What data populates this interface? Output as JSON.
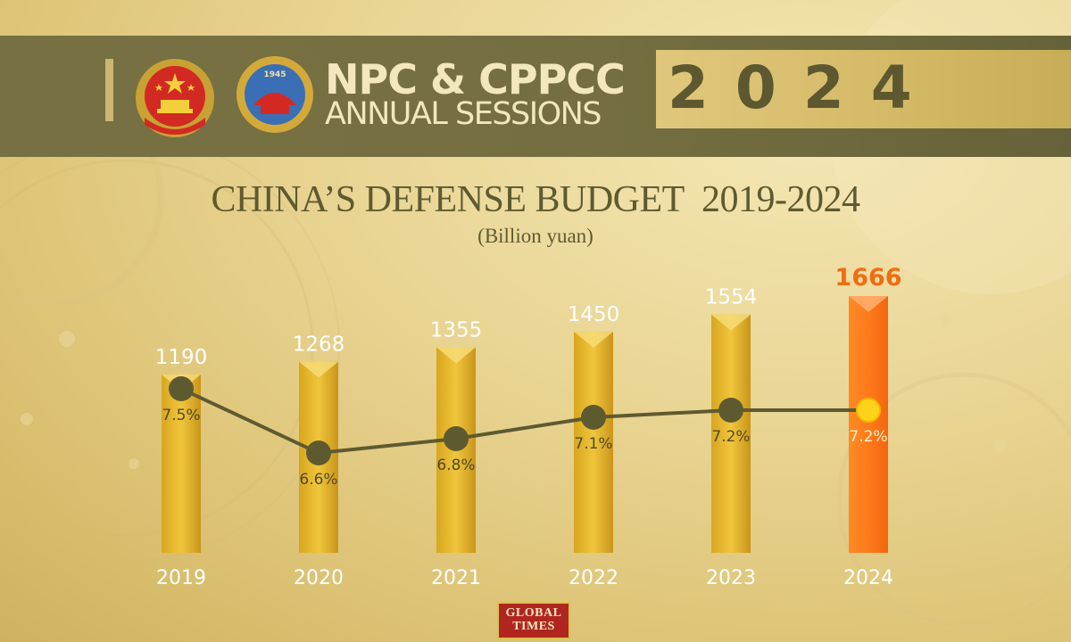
{
  "header": {
    "title_line1": "NPC & CPPCC",
    "title_line2": "ANNUAL SESSIONS",
    "year": "2024",
    "cppcc_emblem_year": "1945"
  },
  "logo": {
    "line1": "GLOBAL",
    "line2": "TIMES"
  },
  "colors": {
    "header_band": "#6b6639",
    "header_text": "#f2e7bd",
    "bar_gold": "#e2b52a",
    "bar_highlight": "#ff7f1f",
    "line": "#5e5a30",
    "highlight_label": "#ef6d12",
    "marker_highlight": "#ffd21a"
  },
  "chart_data": {
    "type": "bar",
    "title": "CHINA’S DEFENSE BUDGET  2019-2024",
    "subtitle": "(Billion yuan)",
    "categories": [
      "2019",
      "2020",
      "2021",
      "2022",
      "2023",
      "2024"
    ],
    "values": [
      1190,
      1268,
      1355,
      1450,
      1554,
      1666
    ],
    "value_labels": [
      "1190",
      "1268",
      "1355",
      "1450",
      "1554",
      "1666"
    ],
    "highlight_index": 5,
    "growth_series": {
      "type": "line",
      "values": [
        7.5,
        6.6,
        6.8,
        7.1,
        7.2,
        7.2
      ],
      "labels": [
        "7.5%",
        "6.6%",
        "6.8%",
        "7.1%",
        "7.2%",
        "7.2%"
      ]
    },
    "legend": "none",
    "grid": false
  }
}
